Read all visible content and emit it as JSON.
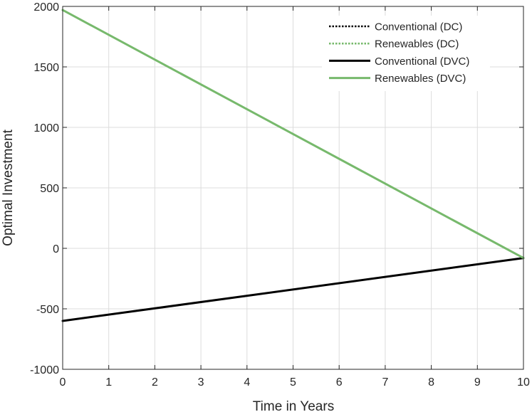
{
  "chart_data": {
    "type": "line",
    "title": "",
    "xlabel": "Time in Years",
    "ylabel": "Optimal Investment",
    "xlim": [
      0,
      10
    ],
    "ylim": [
      -1000,
      2000
    ],
    "x_ticks": [
      0,
      1,
      2,
      3,
      4,
      5,
      6,
      7,
      8,
      9,
      10
    ],
    "y_ticks": [
      -1000,
      -500,
      0,
      500,
      1000,
      1500,
      2000
    ],
    "grid": true,
    "legend_position": "top-right",
    "series": [
      {
        "name": "Conventional (DC)",
        "color": "#000000",
        "style": "dotted",
        "x": [
          0,
          10
        ],
        "y": [
          -600,
          -80
        ]
      },
      {
        "name": "Renewables (DC)",
        "color": "#77b96c",
        "style": "dotted",
        "x": [
          0,
          10
        ],
        "y": [
          1970,
          -80
        ]
      },
      {
        "name": "Conventional (DVC)",
        "color": "#000000",
        "style": "solid",
        "x": [
          0,
          10
        ],
        "y": [
          -600,
          -80
        ]
      },
      {
        "name": "Renewables (DVC)",
        "color": "#77b96c",
        "style": "solid",
        "x": [
          0,
          10
        ],
        "y": [
          1970,
          -80
        ]
      }
    ]
  }
}
